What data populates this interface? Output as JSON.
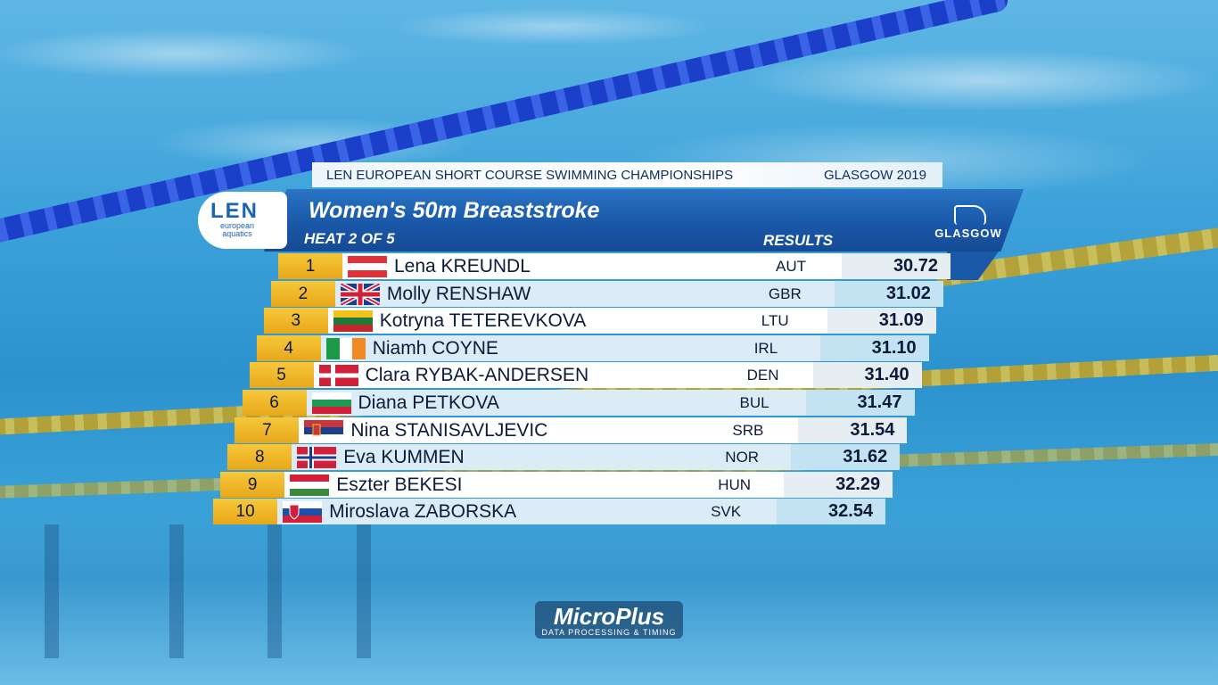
{
  "header": {
    "championship": "LEN EUROPEAN SHORT COURSE SWIMMING CHAMPIONSHIPS",
    "location": "GLASGOW 2019"
  },
  "len_logo": {
    "big": "LEN",
    "small": "european aquatics"
  },
  "event": {
    "title": "Women's 50m Breaststroke",
    "heat": "HEAT 2 OF 5",
    "results_label": "RESULTS"
  },
  "host_logo": {
    "label": "GLASGOW"
  },
  "results": [
    {
      "rank": "1",
      "name": "Lena KREUNDL",
      "nation": "AUT",
      "time": "30.72",
      "flag": "aut"
    },
    {
      "rank": "2",
      "name": "Molly RENSHAW",
      "nation": "GBR",
      "time": "31.02",
      "flag": "gbr"
    },
    {
      "rank": "3",
      "name": "Kotryna TETEREVKOVA",
      "nation": "LTU",
      "time": "31.09",
      "flag": "ltu"
    },
    {
      "rank": "4",
      "name": "Niamh COYNE",
      "nation": "IRL",
      "time": "31.10",
      "flag": "irl"
    },
    {
      "rank": "5",
      "name": "Clara RYBAK-ANDERSEN",
      "nation": "DEN",
      "time": "31.40",
      "flag": "den"
    },
    {
      "rank": "6",
      "name": "Diana PETKOVA",
      "nation": "BUL",
      "time": "31.47",
      "flag": "bul"
    },
    {
      "rank": "7",
      "name": "Nina STANISAVLJEVIC",
      "nation": "SRB",
      "time": "31.54",
      "flag": "srb"
    },
    {
      "rank": "8",
      "name": "Eva KUMMEN",
      "nation": "NOR",
      "time": "31.62",
      "flag": "nor"
    },
    {
      "rank": "9",
      "name": "Eszter BEKESI",
      "nation": "HUN",
      "time": "32.29",
      "flag": "hun"
    },
    {
      "rank": "10",
      "name": "Miroslava ZABORSKA",
      "nation": "SVK",
      "time": "32.54",
      "flag": "svk"
    }
  ],
  "sponsor": {
    "big": "MicroPlus",
    "small": "DATA PROCESSING & TIMING"
  },
  "colors": {
    "accent": "#1a58a8",
    "rank_gold": "#f0b82a",
    "text_dark": "#0d1b3a"
  }
}
